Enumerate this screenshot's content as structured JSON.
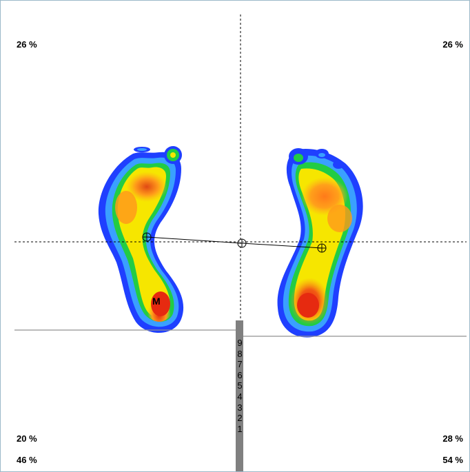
{
  "percentages": {
    "top_left": "26 %",
    "top_right": "26 %",
    "bottom_left_upper": "20 %",
    "bottom_left_lower": "46 %",
    "bottom_right_upper": "28 %",
    "bottom_right_lower": "54 %"
  },
  "scale": {
    "labels": [
      "9",
      "8",
      "7",
      "6",
      "5",
      "4",
      "3",
      "2",
      "1"
    ],
    "bar_color": "#808080"
  },
  "marker_label": "M",
  "heatmap_colors": {
    "low": "#1f3fff",
    "cool": "#3aa0ff",
    "green": "#22cc44",
    "yellow": "#f6e600",
    "orange": "#ff9a1a",
    "high": "#e62a10"
  }
}
